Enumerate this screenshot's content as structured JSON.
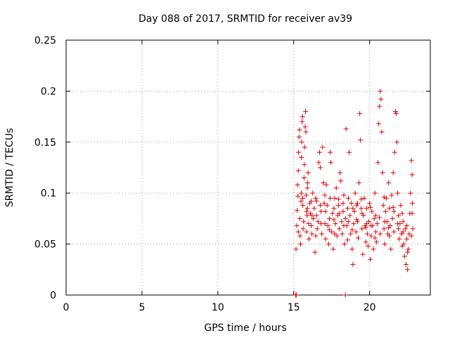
{
  "chart_data": {
    "type": "scatter",
    "title": "Day 088 of 2017, SRMTID for receiver av39",
    "xlabel": "GPS time / hours",
    "ylabel": "SRMTID / TECUs",
    "xlim": [
      0,
      24
    ],
    "ylim": [
      0,
      0.25
    ],
    "grid": true,
    "x_ticks": [
      {
        "v": 0,
        "label": "0"
      },
      {
        "v": 5,
        "label": "5"
      },
      {
        "v": 10,
        "label": "10"
      },
      {
        "v": 15,
        "label": "15"
      },
      {
        "v": 20,
        "label": "20"
      }
    ],
    "y_ticks": [
      {
        "v": 0,
        "label": "0"
      },
      {
        "v": 0.05,
        "label": "0.05"
      },
      {
        "v": 0.1,
        "label": "0.1"
      },
      {
        "v": 0.15,
        "label": "0.15"
      },
      {
        "v": 0.2,
        "label": "0.2"
      },
      {
        "v": 0.25,
        "label": "0.25"
      }
    ],
    "marker": "+",
    "series": [
      {
        "name": "SRMTID",
        "color": "#e00000",
        "points": [
          [
            15.12,
            0.0
          ],
          [
            15.18,
            0.0
          ],
          [
            18.4,
            0.0
          ],
          [
            15.15,
            0.045
          ],
          [
            15.2,
            0.068
          ],
          [
            15.22,
            0.083
          ],
          [
            15.25,
            0.108
          ],
          [
            15.28,
            0.097
          ],
          [
            15.3,
            0.122
          ],
          [
            15.32,
            0.14
          ],
          [
            15.35,
            0.155
          ],
          [
            15.38,
            0.162
          ],
          [
            15.4,
            0.075
          ],
          [
            15.42,
            0.058
          ],
          [
            15.45,
            0.05
          ],
          [
            15.48,
            0.092
          ],
          [
            15.5,
            0.135
          ],
          [
            15.52,
            0.15
          ],
          [
            15.55,
            0.17
          ],
          [
            15.58,
            0.175
          ],
          [
            15.6,
            0.088
          ],
          [
            15.62,
            0.065
          ],
          [
            15.65,
            0.072
          ],
          [
            15.68,
            0.115
          ],
          [
            15.7,
            0.128
          ],
          [
            15.72,
            0.145
          ],
          [
            15.75,
            0.165
          ],
          [
            15.78,
            0.18
          ],
          [
            15.8,
            0.16
          ],
          [
            15.82,
            0.098
          ],
          [
            15.85,
            0.062
          ],
          [
            15.88,
            0.078
          ],
          [
            15.9,
            0.085
          ],
          [
            15.92,
            0.11
          ],
          [
            15.95,
            0.12
          ],
          [
            15.98,
            0.07
          ],
          [
            16.0,
            0.055
          ],
          [
            16.05,
            0.09
          ],
          [
            16.1,
            0.08
          ],
          [
            16.15,
            0.068
          ],
          [
            16.2,
            0.06
          ],
          [
            16.25,
            0.1
          ],
          [
            16.3,
            0.075
          ],
          [
            16.35,
            0.085
          ],
          [
            16.4,
            0.042
          ],
          [
            16.45,
            0.095
          ],
          [
            16.5,
            0.078
          ],
          [
            16.55,
            0.065
          ],
          [
            16.6,
            0.072
          ],
          [
            16.65,
            0.13
          ],
          [
            16.7,
            0.14
          ],
          [
            16.75,
            0.125
          ],
          [
            16.8,
            0.082
          ],
          [
            16.85,
            0.06
          ],
          [
            16.9,
            0.145
          ],
          [
            16.95,
            0.11
          ],
          [
            17.0,
            0.09
          ],
          [
            17.05,
            0.07
          ],
          [
            17.1,
            0.055
          ],
          [
            17.15,
            0.108
          ],
          [
            17.2,
            0.088
          ],
          [
            17.25,
            0.068
          ],
          [
            17.3,
            0.05
          ],
          [
            17.35,
            0.075
          ],
          [
            17.4,
            0.14
          ],
          [
            17.45,
            0.13
          ],
          [
            17.5,
            0.062
          ],
          [
            17.55,
            0.08
          ],
          [
            17.6,
            0.045
          ],
          [
            17.65,
            0.085
          ],
          [
            17.7,
            0.095
          ],
          [
            17.75,
            0.07
          ],
          [
            17.8,
            0.105
          ],
          [
            17.85,
            0.058
          ],
          [
            17.9,
            0.078
          ],
          [
            17.95,
            0.088
          ],
          [
            18.0,
            0.065
          ],
          [
            18.05,
            0.12
          ],
          [
            18.1,
            0.112
          ],
          [
            18.15,
            0.072
          ],
          [
            18.2,
            0.06
          ],
          [
            18.25,
            0.082
          ],
          [
            18.3,
            0.098
          ],
          [
            18.35,
            0.05
          ],
          [
            18.4,
            0.075
          ],
          [
            18.45,
            0.163
          ],
          [
            18.5,
            0.068
          ],
          [
            18.55,
            0.085
          ],
          [
            18.6,
            0.095
          ],
          [
            18.65,
            0.14
          ],
          [
            18.7,
            0.078
          ],
          [
            18.75,
            0.06
          ],
          [
            18.8,
            0.09
          ],
          [
            18.85,
            0.045
          ],
          [
            18.9,
            0.03
          ],
          [
            18.95,
            0.07
          ],
          [
            19.0,
            0.082
          ],
          [
            19.05,
            0.1
          ],
          [
            19.1,
            0.062
          ],
          [
            19.15,
            0.088
          ],
          [
            19.2,
            0.072
          ],
          [
            19.25,
            0.056
          ],
          [
            19.3,
            0.11
          ],
          [
            19.35,
            0.178
          ],
          [
            19.4,
            0.152
          ],
          [
            19.45,
            0.085
          ],
          [
            19.5,
            0.065
          ],
          [
            19.55,
            0.04
          ],
          [
            19.6,
            0.078
          ],
          [
            19.65,
            0.095
          ],
          [
            19.7,
            0.068
          ],
          [
            19.75,
            0.052
          ],
          [
            19.8,
            0.085
          ],
          [
            19.85,
            0.06
          ],
          [
            19.9,
            0.048
          ],
          [
            19.95,
            0.072
          ],
          [
            20.0,
            0.09
          ],
          [
            20.05,
            0.035
          ],
          [
            20.1,
            0.058
          ],
          [
            20.15,
            0.082
          ],
          [
            20.2,
            0.068
          ],
          [
            20.25,
            0.045
          ],
          [
            20.3,
            0.075
          ],
          [
            20.35,
            0.1
          ],
          [
            20.4,
            0.062
          ],
          [
            20.45,
            0.052
          ],
          [
            20.5,
            0.07
          ],
          [
            20.55,
            0.13
          ],
          [
            20.6,
            0.168
          ],
          [
            20.65,
            0.185
          ],
          [
            20.7,
            0.2
          ],
          [
            20.75,
            0.192
          ],
          [
            20.8,
            0.16
          ],
          [
            20.85,
            0.12
          ],
          [
            20.9,
            0.088
          ],
          [
            20.95,
            0.065
          ],
          [
            21.0,
            0.05
          ],
          [
            21.05,
            0.082
          ],
          [
            21.1,
            0.095
          ],
          [
            21.15,
            0.072
          ],
          [
            21.2,
            0.06
          ],
          [
            21.25,
            0.11
          ],
          [
            21.3,
            0.085
          ],
          [
            21.35,
            0.068
          ],
          [
            21.4,
            0.045
          ],
          [
            21.45,
            0.098
          ],
          [
            21.5,
            0.075
          ],
          [
            21.55,
            0.12
          ],
          [
            21.6,
            0.062
          ],
          [
            21.65,
            0.14
          ],
          [
            21.7,
            0.18
          ],
          [
            21.75,
            0.178
          ],
          [
            21.8,
            0.15
          ],
          [
            21.85,
            0.1
          ],
          [
            21.9,
            0.078
          ],
          [
            21.95,
            0.055
          ],
          [
            22.0,
            0.07
          ],
          [
            22.05,
            0.088
          ],
          [
            22.1,
            0.06
          ],
          [
            22.15,
            0.048
          ],
          [
            22.2,
            0.072
          ],
          [
            22.25,
            0.05
          ],
          [
            22.3,
            0.038
          ],
          [
            22.35,
            0.065
          ],
          [
            22.4,
            0.03
          ],
          [
            22.45,
            0.055
          ],
          [
            22.5,
            0.025
          ],
          [
            22.55,
            0.045
          ],
          [
            22.6,
            0.06
          ],
          [
            22.65,
            0.08
          ],
          [
            22.7,
            0.1
          ],
          [
            22.75,
            0.132
          ],
          [
            22.8,
            0.118
          ],
          [
            22.82,
            0.09
          ],
          [
            22.85,
            0.065
          ],
          [
            15.3,
            0.062
          ],
          [
            15.6,
            0.095
          ],
          [
            15.9,
            0.105
          ],
          [
            16.2,
            0.078
          ],
          [
            16.5,
            0.092
          ],
          [
            16.8,
            0.07
          ],
          [
            17.1,
            0.082
          ],
          [
            17.4,
            0.095
          ],
          [
            17.7,
            0.06
          ],
          [
            18.0,
            0.08
          ],
          [
            18.3,
            0.068
          ],
          [
            18.6,
            0.072
          ],
          [
            18.9,
            0.085
          ],
          [
            19.2,
            0.09
          ],
          [
            19.5,
            0.08
          ],
          [
            19.8,
            0.07
          ],
          [
            20.1,
            0.068
          ],
          [
            20.4,
            0.078
          ],
          [
            20.7,
            0.06
          ],
          [
            21.0,
            0.072
          ],
          [
            21.3,
            0.058
          ],
          [
            21.6,
            0.082
          ],
          [
            21.9,
            0.065
          ],
          [
            22.2,
            0.062
          ],
          [
            22.5,
            0.042
          ],
          [
            22.8,
            0.08
          ],
          [
            15.5,
            0.1
          ],
          [
            15.85,
            0.082
          ],
          [
            16.15,
            0.092
          ],
          [
            16.45,
            0.058
          ],
          [
            16.75,
            0.088
          ],
          [
            17.05,
            0.098
          ],
          [
            17.35,
            0.064
          ],
          [
            17.65,
            0.074
          ],
          [
            17.95,
            0.094
          ],
          [
            18.25,
            0.09
          ],
          [
            18.55,
            0.054
          ],
          [
            18.85,
            0.064
          ],
          [
            19.15,
            0.074
          ],
          [
            19.45,
            0.094
          ],
          [
            19.75,
            0.066
          ],
          [
            20.05,
            0.086
          ],
          [
            20.35,
            0.056
          ],
          [
            20.65,
            0.076
          ],
          [
            20.95,
            0.096
          ],
          [
            21.25,
            0.066
          ],
          [
            21.55,
            0.086
          ],
          [
            21.85,
            0.07
          ],
          [
            22.15,
            0.08
          ],
          [
            22.45,
            0.068
          ],
          [
            22.75,
            0.058
          ]
        ]
      }
    ]
  }
}
